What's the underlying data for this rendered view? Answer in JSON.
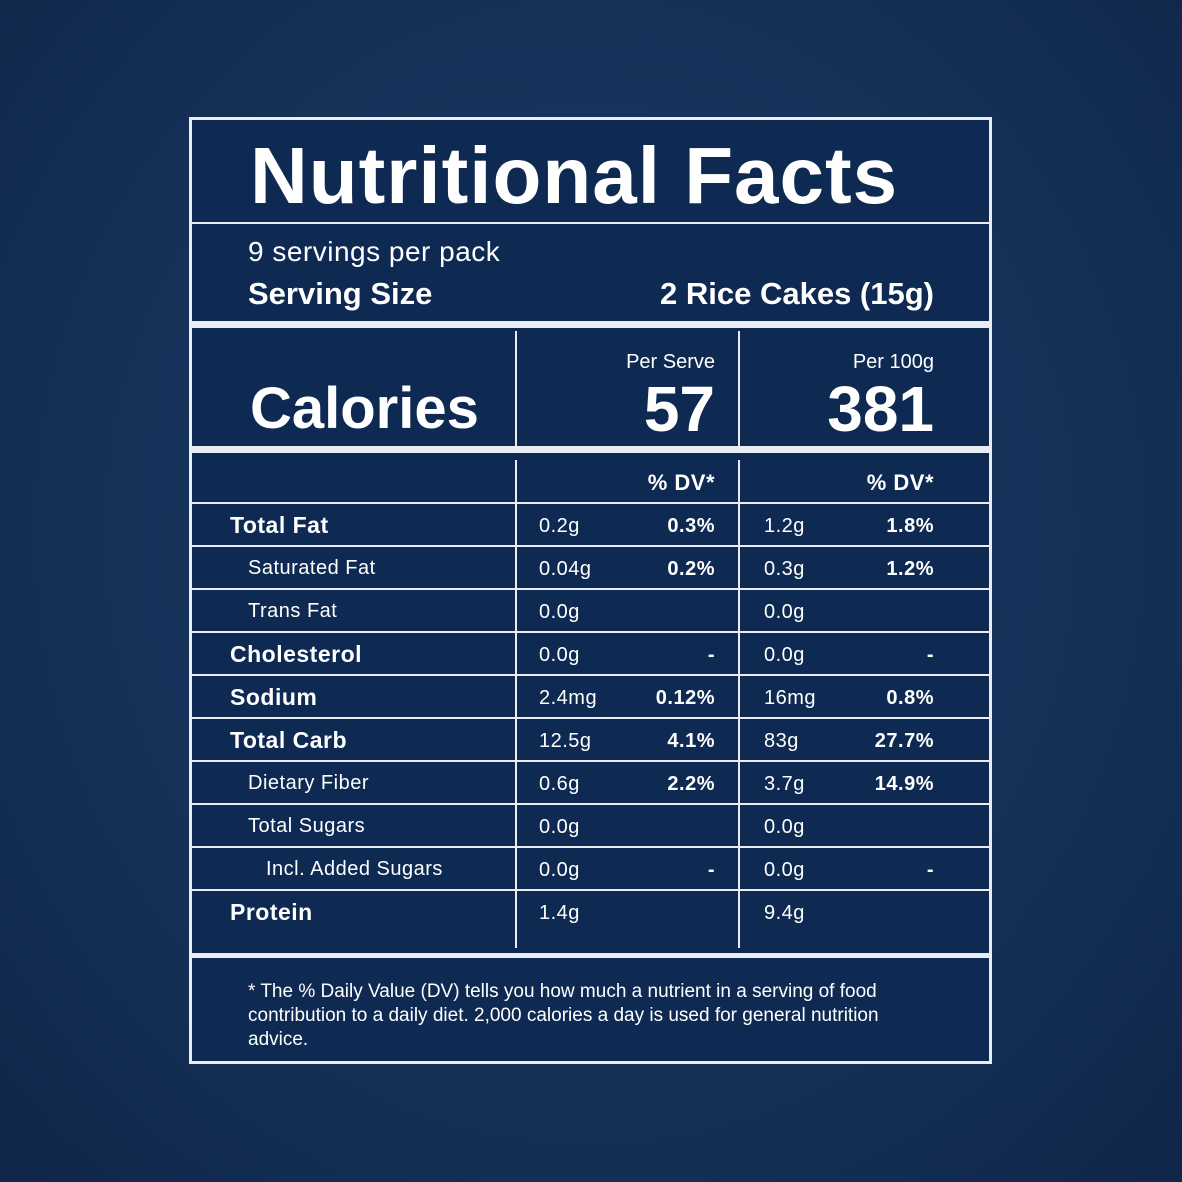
{
  "title": "Nutritional Facts",
  "servings_per_pack": "9 servings per pack",
  "serving_size": {
    "label": "Serving Size",
    "value": "2 Rice Cakes (15g)"
  },
  "calories": {
    "label": "Calories",
    "per_serve_label": "Per Serve",
    "per_serve_value": "57",
    "per_100g_label": "Per 100g",
    "per_100g_value": "381"
  },
  "dv_header": {
    "serve": "% DV*",
    "per100": "% DV*"
  },
  "rows": [
    {
      "name": "Total Fat",
      "bold": true,
      "indent": 0,
      "serve": "0.2g",
      "serve_dv": "0.3%",
      "per100": "1.2g",
      "per100_dv": "1.8%"
    },
    {
      "name": "Saturated Fat",
      "bold": false,
      "indent": 1,
      "serve": "0.04g",
      "serve_dv": "0.2%",
      "per100": "0.3g",
      "per100_dv": "1.2%"
    },
    {
      "name": "Trans Fat",
      "bold": false,
      "indent": 1,
      "serve": "0.0g",
      "serve_dv": "",
      "per100": "0.0g",
      "per100_dv": ""
    },
    {
      "name": "Cholesterol",
      "bold": true,
      "indent": 0,
      "serve": "0.0g",
      "serve_dv": "-",
      "per100": "0.0g",
      "per100_dv": "-"
    },
    {
      "name": "Sodium",
      "bold": true,
      "indent": 0,
      "serve": "2.4mg",
      "serve_dv": "0.12%",
      "per100": "16mg",
      "per100_dv": "0.8%"
    },
    {
      "name": "Total Carb",
      "bold": true,
      "indent": 0,
      "serve": "12.5g",
      "serve_dv": "4.1%",
      "per100": "83g",
      "per100_dv": "27.7%"
    },
    {
      "name": "Dietary Fiber",
      "bold": false,
      "indent": 1,
      "serve": "0.6g",
      "serve_dv": "2.2%",
      "per100": "3.7g",
      "per100_dv": "14.9%"
    },
    {
      "name": "Total Sugars",
      "bold": false,
      "indent": 1,
      "serve": "0.0g",
      "serve_dv": "",
      "per100": "0.0g",
      "per100_dv": ""
    },
    {
      "name": "Incl. Added Sugars",
      "bold": false,
      "indent": 2,
      "serve": "0.0g",
      "serve_dv": "-",
      "per100": "0.0g",
      "per100_dv": "-"
    },
    {
      "name": "Protein",
      "bold": true,
      "indent": 0,
      "serve": "1.4g",
      "serve_dv": "",
      "per100": "9.4g",
      "per100_dv": ""
    }
  ],
  "footnote": "* The % Daily Value (DV) tells you how much a nutrient in a serving of food contribution to a daily diet. 2,000 calories a day is used for general nutrition advice.",
  "colors": {
    "background": "#163259",
    "panel": "#0f2a52",
    "lines": "#e8edf3",
    "text": "#ffffff"
  }
}
